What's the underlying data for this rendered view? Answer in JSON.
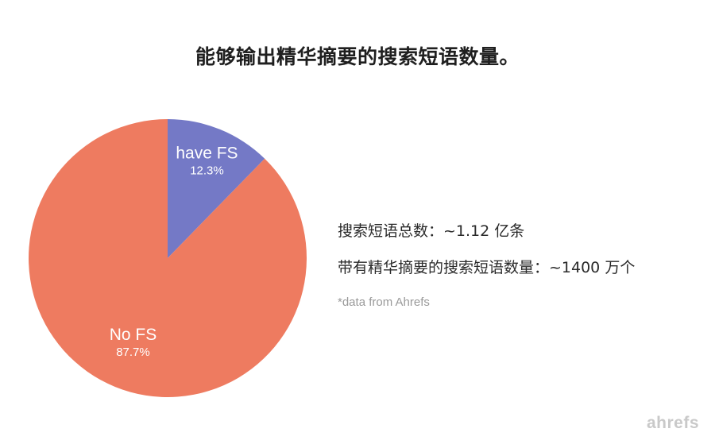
{
  "title": "能够输出精华摘要的搜索短语数量。",
  "chart_data": {
    "type": "pie",
    "categories": [
      "have FS",
      "No FS"
    ],
    "values": [
      12.3,
      87.7
    ],
    "value_labels": [
      "12.3%",
      "87.7%"
    ],
    "colors": [
      "#7479c6",
      "#ee7b60"
    ],
    "start": "12 o'clock, clockwise"
  },
  "stats": {
    "total": "搜索短语总数：~1.12 亿条",
    "with_fs": "带有精华摘要的搜索短语数量：~1400 万个"
  },
  "source_note": "*data from Ahrefs",
  "brand": "ahrefs"
}
